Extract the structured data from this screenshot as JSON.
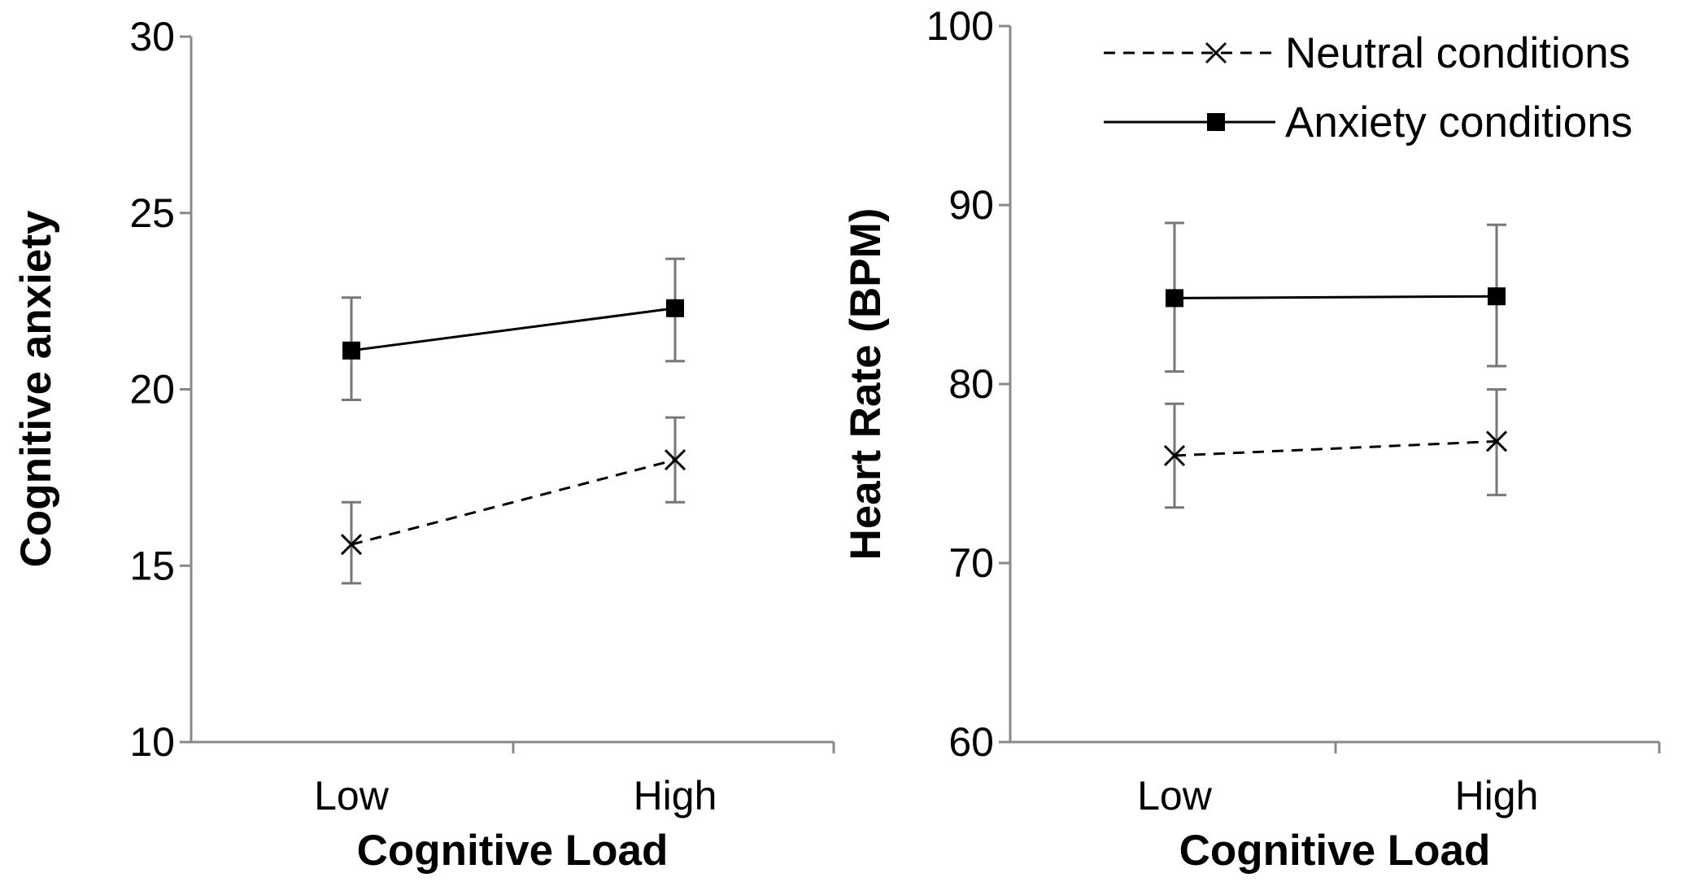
{
  "colors": {
    "axis": "#888888",
    "errorbar": "#777777",
    "series_line": "#000000",
    "background": "#ffffff"
  },
  "legend": {
    "position": "top-right",
    "items": [
      {
        "name": "Neutral conditions",
        "style": "dashed",
        "marker": "x"
      },
      {
        "name": "Anxiety conditions",
        "style": "solid",
        "marker": "square"
      }
    ]
  },
  "chart_data": [
    {
      "type": "line",
      "title": "",
      "xlabel": "Cognitive Load",
      "ylabel": "Cognitive anxiety",
      "categories": [
        "Low",
        "High"
      ],
      "ylim": [
        10,
        30
      ],
      "yticks": [
        10,
        15,
        20,
        25,
        30
      ],
      "grid": false,
      "series": [
        {
          "name": "Neutral conditions",
          "style": "dashed",
          "marker": "x",
          "values": [
            15.6,
            18.0
          ],
          "error_low": [
            14.5,
            16.8
          ],
          "error_high": [
            16.8,
            19.2
          ]
        },
        {
          "name": "Anxiety conditions",
          "style": "solid",
          "marker": "square",
          "values": [
            21.1,
            22.3
          ],
          "error_low": [
            19.7,
            20.8
          ],
          "error_high": [
            22.6,
            23.7
          ]
        }
      ]
    },
    {
      "type": "line",
      "title": "",
      "xlabel": "Cognitive Load",
      "ylabel": "Heart Rate (BPM)",
      "categories": [
        "Low",
        "High"
      ],
      "ylim": [
        60,
        100
      ],
      "yticks": [
        60,
        70,
        80,
        90,
        100
      ],
      "grid": false,
      "series": [
        {
          "name": "Neutral conditions",
          "style": "dashed",
          "marker": "x",
          "values": [
            76.0,
            76.8
          ],
          "error_low": [
            73.1,
            73.8
          ],
          "error_high": [
            78.9,
            79.7
          ]
        },
        {
          "name": "Anxiety conditions",
          "style": "solid",
          "marker": "square",
          "values": [
            84.8,
            84.9
          ],
          "error_low": [
            80.7,
            81.0
          ],
          "error_high": [
            89.0,
            88.9
          ]
        }
      ]
    }
  ]
}
